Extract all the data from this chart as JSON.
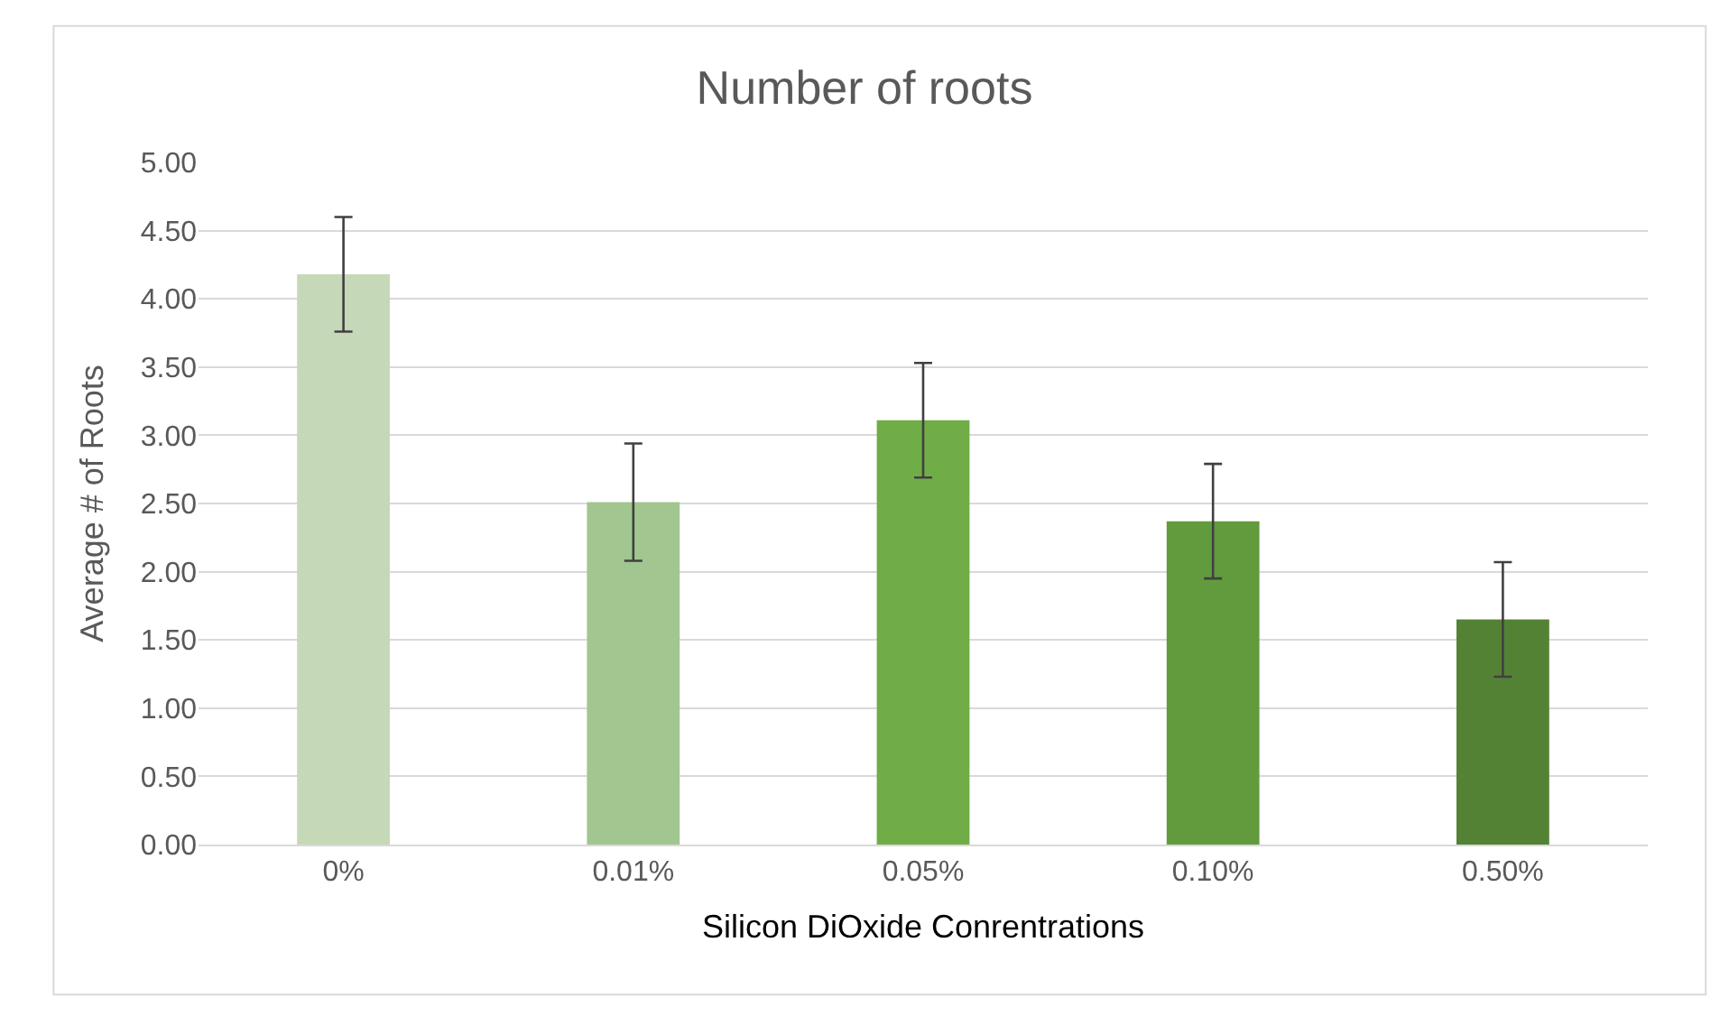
{
  "chart_data": {
    "type": "bar",
    "title": "Number of roots",
    "xlabel": "Silicon DiOxide Conrentrations",
    "ylabel": "Average # of Roots",
    "categories": [
      "0%",
      "0.01%",
      "0.05%",
      "0.10%",
      "0.50%"
    ],
    "values": [
      4.18,
      2.51,
      3.11,
      2.37,
      1.65
    ],
    "errors": [
      0.42,
      0.43,
      0.42,
      0.42,
      0.42
    ],
    "colors": [
      "#c5d9b8",
      "#a2c68f",
      "#70ad47",
      "#629b3d",
      "#548235"
    ],
    "ylim": [
      0,
      5
    ],
    "yticks": [
      {
        "value": 0,
        "label": "0.00"
      },
      {
        "value": 0.5,
        "label": "0.50"
      },
      {
        "value": 1,
        "label": "1.00"
      },
      {
        "value": 1.5,
        "label": "1.50"
      },
      {
        "value": 2,
        "label": "2.00"
      },
      {
        "value": 2.5,
        "label": "2.50"
      },
      {
        "value": 3,
        "label": "3.00"
      },
      {
        "value": 3.5,
        "label": "3.50"
      },
      {
        "value": 4,
        "label": "4.00"
      },
      {
        "value": 4.5,
        "label": "4.50"
      },
      {
        "value": 5,
        "label": "5.00"
      }
    ],
    "grid": "y",
    "legend": false
  }
}
